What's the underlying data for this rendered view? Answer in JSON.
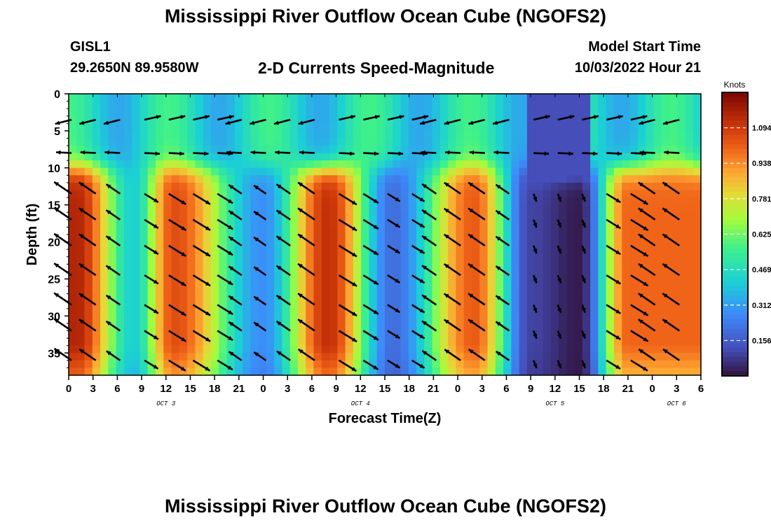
{
  "header": {
    "title": "Mississippi River Outflow Ocean Cube (NGOFS2)",
    "station": "GISL1",
    "coordinates": "29.2650N  89.9580W",
    "subtitle": "2-D Currents Speed-Magnitude",
    "model_start_label": "Model Start Time",
    "model_start_value": "10/03/2022 Hour 21"
  },
  "footer": {
    "title": "Mississippi River Outflow Ocean Cube (NGOFS2)"
  },
  "chart_data": {
    "type": "heatmap",
    "title": "2-D Currents Speed-Magnitude",
    "xlabel": "Forecast Time(Z)",
    "ylabel": "Depth (ft)",
    "x_range_hours": [
      0,
      78
    ],
    "ylim": [
      0,
      38
    ],
    "y_ticks": [
      0,
      5,
      10,
      15,
      20,
      25,
      30,
      35
    ],
    "x_tick_hours": [
      0,
      3,
      6,
      9,
      12,
      15,
      18,
      21,
      24,
      27,
      30,
      33,
      36,
      39,
      42,
      45,
      48,
      51,
      54,
      57,
      60,
      63,
      66,
      69,
      72,
      75,
      78
    ],
    "x_tick_labels": [
      "0",
      "3",
      "6",
      "9",
      "12",
      "15",
      "18",
      "21",
      "0",
      "3",
      "6",
      "9",
      "12",
      "15",
      "18",
      "21",
      "0",
      "3",
      "6",
      "9",
      "12",
      "15",
      "18",
      "21",
      "0",
      "3",
      "6"
    ],
    "date_labels": [
      {
        "hour": 12,
        "text": "OCT 3"
      },
      {
        "hour": 36,
        "text": "OCT 4"
      },
      {
        "hour": 60,
        "text": "OCT 5"
      },
      {
        "hour": 75,
        "text": "OCT 6"
      }
    ],
    "colorbar": {
      "label": "Knots",
      "min": 0.0,
      "max": 1.25,
      "ticks": [
        0.156,
        0.312,
        0.469,
        0.625,
        0.781,
        0.938,
        1.094
      ],
      "tick_labels": [
        "0.156",
        "0.312",
        "0.469",
        "0.625",
        "0.781",
        "0.938",
        "1.094"
      ]
    },
    "speed_model": {
      "deep_peak_hours": [
        1,
        13,
        32,
        50,
        69
      ],
      "deep_peak_speed_knots": [
        1.15,
        1.05,
        1.12,
        1.02,
        1.0
      ],
      "slack_hours": [
        8,
        24,
        40,
        57,
        63
      ],
      "slack_speed_knots": [
        0.42,
        0.28,
        0.2,
        0.1,
        0.02
      ],
      "surface_layer_depth_ft": [
        0,
        9
      ],
      "surface_speed_knots": [
        0.6,
        0.4,
        0.6,
        0.3,
        0.6
      ]
    },
    "vector_rows_depth_ft": [
      3.5,
      8,
      13.5,
      17,
      20.5,
      24.5,
      28.5,
      32,
      36
    ],
    "vector_columns_hours": [
      0,
      3,
      6,
      9,
      12,
      15,
      18,
      21,
      24,
      27,
      30,
      33,
      36,
      39,
      42,
      45,
      48,
      51,
      54,
      57,
      60,
      63,
      66,
      69,
      72,
      75
    ],
    "vector_direction_note": "deep flood vectors point down-right (SE), deep ebb vectors point up-left (NW); surface vectors mostly point left/right horizontally"
  }
}
